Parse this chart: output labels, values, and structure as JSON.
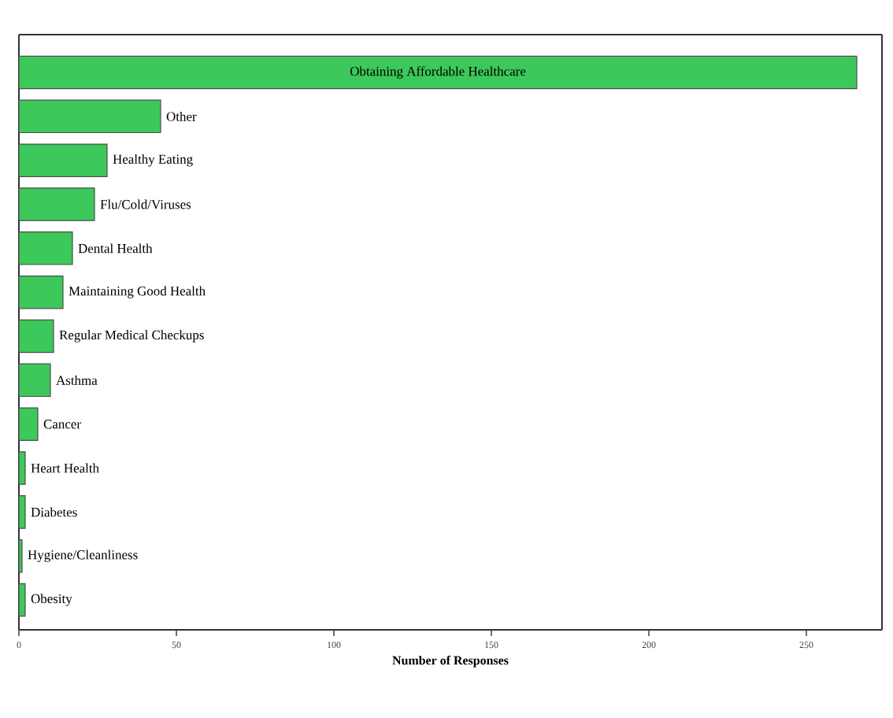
{
  "chart_data": {
    "type": "bar",
    "orientation": "horizontal",
    "xlabel": "Number of Responses",
    "categories": [
      "Obtaining Affordable Healthcare",
      "Other",
      "Healthy Eating",
      "Flu/Cold/Viruses",
      "Dental Health",
      "Maintaining Good Health",
      "Regular Medical Checkups",
      "Asthma",
      "Cancer",
      "Heart Health",
      "Diabetes",
      "Hygiene/Cleanliness",
      "Obesity"
    ],
    "values": [
      266,
      45,
      28,
      24,
      17,
      14,
      11,
      10,
      6,
      2,
      2,
      1,
      2
    ],
    "color": "#3cc85a",
    "xlim": [
      0,
      274
    ],
    "xticks": [
      0,
      50,
      100,
      150,
      200,
      250
    ],
    "tick_labels": "x"
  }
}
